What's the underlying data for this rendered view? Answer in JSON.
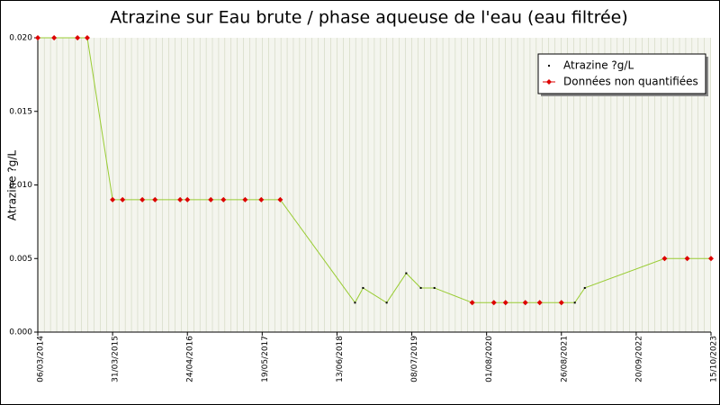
{
  "chart_data": {
    "type": "line",
    "title": "Atrazine sur Eau brute / phase aqueuse de l'eau (eau filtrée)",
    "y_label": "Atrazine ?g/L",
    "x": [
      "2014-03-06",
      "2014-05-30",
      "2014-09-29",
      "2014-11-19",
      "2015-03-31",
      "2015-05-22",
      "2015-09-02",
      "2015-11-07",
      "2016-03-17",
      "2016-04-24",
      "2016-08-24",
      "2016-10-29",
      "2017-02-19",
      "2017-05-14",
      "2017-08-21",
      "2018-09-15",
      "2018-10-27",
      "2019-02-27",
      "2019-06-09",
      "2019-08-24",
      "2019-11-03",
      "2020-05-18",
      "2020-09-08",
      "2020-11-08",
      "2021-02-19",
      "2021-05-05",
      "2021-08-26",
      "2021-11-04",
      "2021-12-26",
      "2023-02-15",
      "2023-06-13",
      "2023-10-15"
    ],
    "series": [
      {
        "name": "Atrazine ?g/L",
        "color": "#000000",
        "line_color": "#99cc33",
        "values": [
          0.02,
          0.02,
          0.02,
          0.02,
          0.009,
          0.009,
          0.009,
          0.009,
          0.009,
          0.009,
          0.009,
          0.009,
          0.009,
          0.009,
          0.009,
          0.002,
          0.003,
          0.002,
          0.004,
          0.003,
          0.003,
          0.002,
          0.002,
          0.002,
          0.002,
          0.002,
          0.002,
          0.002,
          0.003,
          0.005,
          0.005,
          0.005
        ]
      },
      {
        "name": "Données non quantifiées",
        "color": "#dd0000",
        "values": [
          0.02,
          0.02,
          0.02,
          0.02,
          0.009,
          0.009,
          0.009,
          0.009,
          0.009,
          0.009,
          0.009,
          0.009,
          0.009,
          0.009,
          0.009,
          null,
          null,
          null,
          null,
          null,
          null,
          0.002,
          0.002,
          0.002,
          0.002,
          0.002,
          0.002,
          null,
          null,
          0.005,
          0.005,
          0.005
        ]
      }
    ],
    "xlim": [
      "2014-03-06",
      "2023-10-15"
    ],
    "xticks": [
      {
        "value": "2014-03-06",
        "label": "06/03/2014"
      },
      {
        "value": "2015-03-31",
        "label": "31/03/2015"
      },
      {
        "value": "2016-04-24",
        "label": "24/04/2016"
      },
      {
        "value": "2017-05-19",
        "label": "19/05/2017"
      },
      {
        "value": "2018-06-13",
        "label": "13/06/2018"
      },
      {
        "value": "2019-07-08",
        "label": "08/07/2019"
      },
      {
        "value": "2020-08-01",
        "label": "01/08/2020"
      },
      {
        "value": "2021-08-26",
        "label": "26/08/2021"
      },
      {
        "value": "2022-09-20",
        "label": "20/09/2022"
      },
      {
        "value": "2023-10-15",
        "label": "15/10/2023"
      }
    ],
    "ylim": [
      0,
      0.02
    ],
    "yticks": [
      {
        "value": 0,
        "label": "0.000"
      },
      0.005,
      {
        "value": 0.01,
        "label": "0.010"
      },
      0.015,
      {
        "value": 0.02,
        "label": "0.020"
      }
    ],
    "legend": "top-right"
  }
}
